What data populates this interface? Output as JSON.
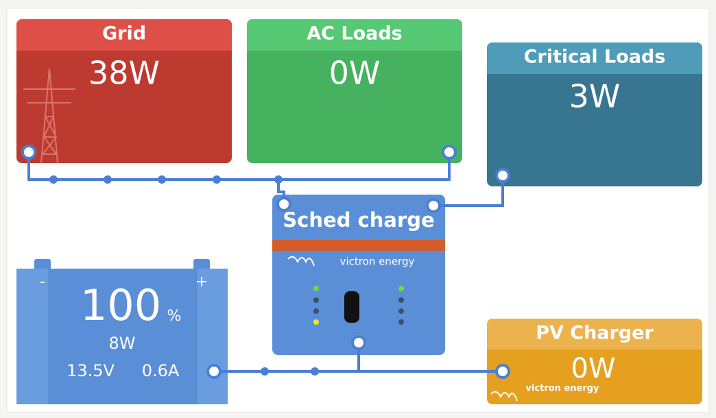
{
  "tiles": {
    "grid": {
      "title": "Grid",
      "value": "38W"
    },
    "ac_loads": {
      "title": "AC Loads",
      "value": "0W"
    },
    "critical_loads": {
      "title": "Critical Loads",
      "value": "3W"
    },
    "inverter": {
      "title": "Sched charge",
      "brand": "victron energy"
    },
    "battery": {
      "minus": "-",
      "plus": "+",
      "soc": "100",
      "soc_unit": "%",
      "power": "8W",
      "voltage": "13.5V",
      "current": "0.6A"
    },
    "pv_charger": {
      "title": "PV Charger",
      "value": "0W",
      "brand": "victron energy"
    }
  }
}
